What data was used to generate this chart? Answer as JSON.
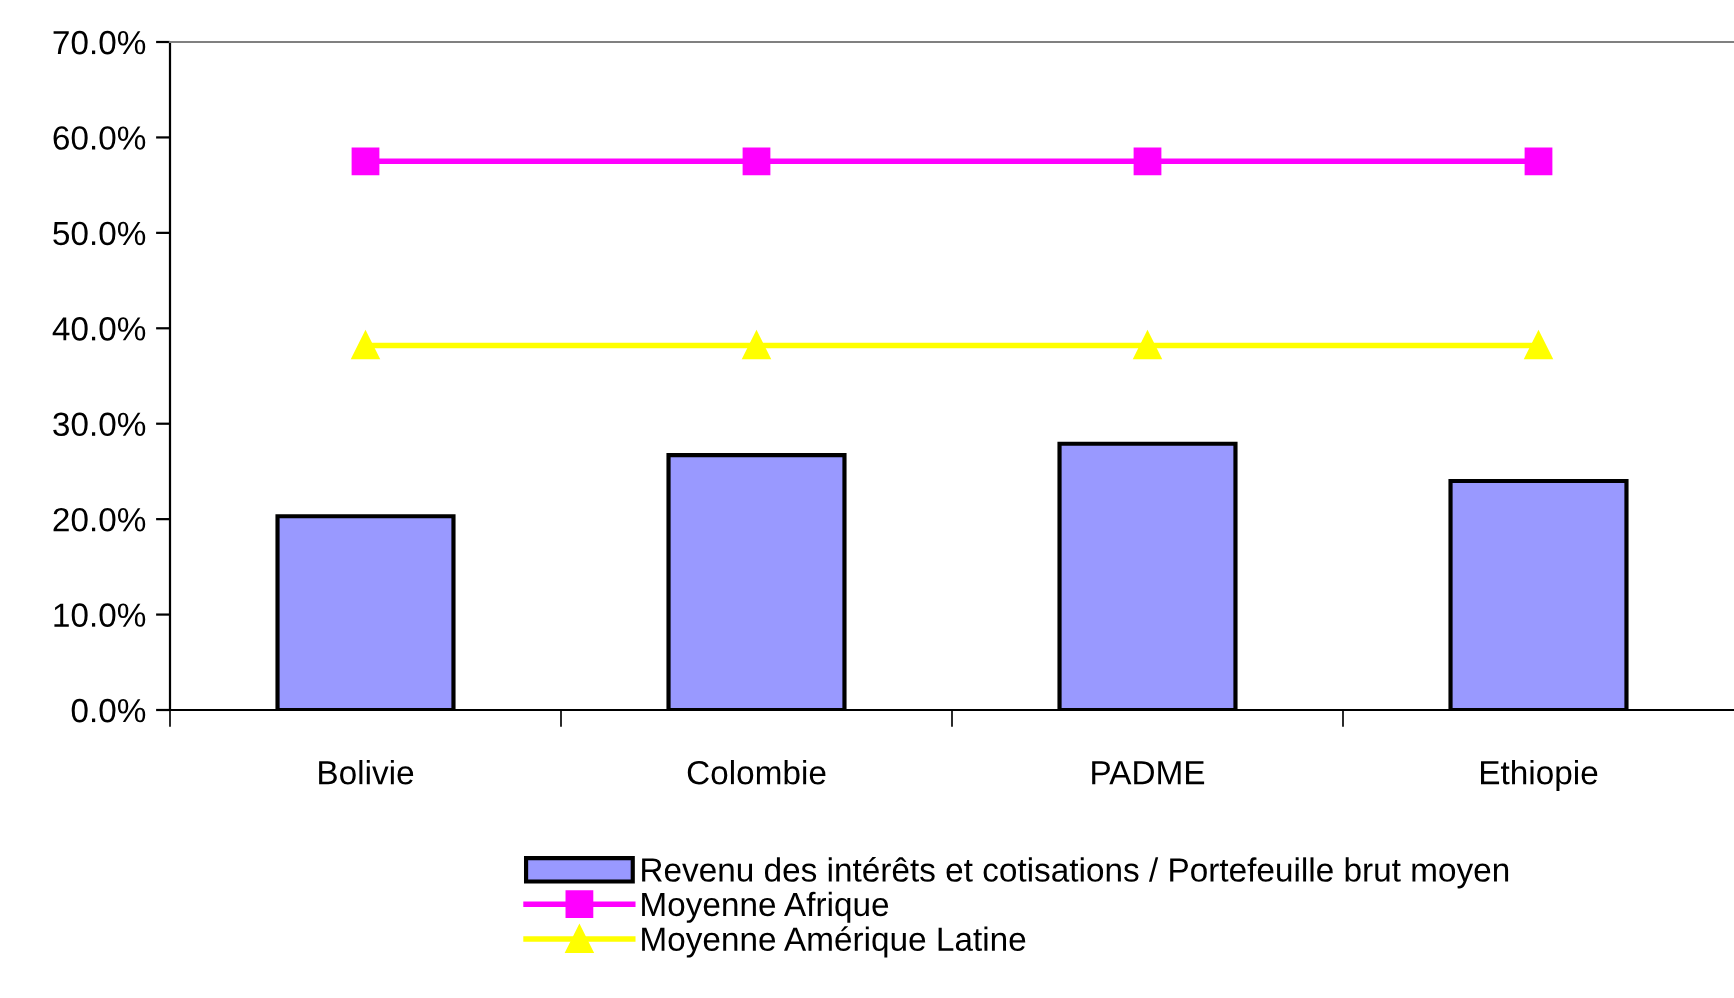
{
  "chart_data": {
    "type": "bar",
    "categories": [
      "Bolivie",
      "Colombie",
      "PADME",
      "Ethiopie"
    ],
    "series": [
      {
        "name": "Revenu des intérêts et cotisations / Portefeuille brut moyen",
        "color": "#9999ff",
        "values": [
          20.3,
          26.7,
          27.9,
          24.0
        ]
      },
      {
        "name": "Moyenne Afrique",
        "type": "line",
        "color": "#ff00ff",
        "marker": "square",
        "values": [
          57.5,
          57.5,
          57.5,
          57.5
        ]
      },
      {
        "name": "Moyenne Amérique Latine",
        "type": "line",
        "color": "#ffff00",
        "marker": "triangle",
        "values": [
          38.2,
          38.2,
          38.2,
          38.2
        ]
      }
    ],
    "ylim": [
      0,
      70
    ],
    "yticks": [
      {
        "value": 0,
        "label": "0.0%"
      },
      {
        "value": 10,
        "label": "10.0%"
      },
      {
        "value": 20,
        "label": "20.0%"
      },
      {
        "value": 30,
        "label": "30.0%"
      },
      {
        "value": 40,
        "label": "40.0%"
      },
      {
        "value": 50,
        "label": "50.0%"
      },
      {
        "value": 60,
        "label": "60.0%"
      },
      {
        "value": 70,
        "label": "70.0%"
      }
    ],
    "grid": false,
    "legend": "bottom"
  }
}
